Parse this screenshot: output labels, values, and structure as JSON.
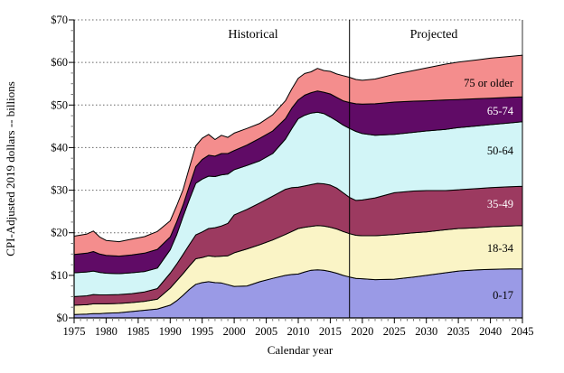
{
  "chart": {
    "header_left": "Historical",
    "header_right": "Projected",
    "x_axis_title": "Calendar year",
    "y_axis_title": "CPI-Adjusted 2019 dollars -- billions"
  },
  "chart_data": {
    "type": "area",
    "stacked": true,
    "title": "",
    "xlabel": "Calendar year",
    "ylabel": "CPI-Adjusted 2019 dollars -- billions",
    "xlim": [
      1975,
      2045
    ],
    "ylim": [
      0,
      70
    ],
    "grid": "horizontal dotted lines every $10",
    "legend_position": "labels inside bands at right",
    "divider_year": 2018,
    "annotations": [
      "Historical",
      "Projected"
    ],
    "y_tick_labels": [
      "$0",
      "$10",
      "$20",
      "$30",
      "$40",
      "$50",
      "$60",
      "$70"
    ],
    "y_tick_values": [
      0,
      10,
      20,
      30,
      40,
      50,
      60,
      70
    ],
    "x_tick_labels": [
      "1975",
      "1980",
      "1985",
      "1990",
      "1995",
      "2000",
      "2005",
      "2010",
      "2015",
      "2020",
      "2025",
      "2030",
      "2035",
      "2040",
      "2045"
    ],
    "x_tick_values": [
      1975,
      1980,
      1985,
      1990,
      1995,
      2000,
      2005,
      2010,
      2015,
      2020,
      2025,
      2030,
      2035,
      2040,
      2045
    ],
    "x": [
      1975,
      1977,
      1978,
      1979,
      1980,
      1982,
      1984,
      1986,
      1988,
      1990,
      1991,
      1992,
      1993,
      1994,
      1995,
      1996,
      1997,
      1998,
      1999,
      2000,
      2002,
      2004,
      2006,
      2008,
      2009,
      2010,
      2011,
      2012,
      2013,
      2014,
      2015,
      2016,
      2017,
      2018,
      2019,
      2020,
      2022,
      2025,
      2028,
      2030,
      2033,
      2035,
      2038,
      2040,
      2043,
      2045
    ],
    "series": [
      {
        "name": "0-17",
        "color": "#9a9ae6",
        "label_color": "#000000",
        "values": [
          0.8,
          0.9,
          1.0,
          1.0,
          1.1,
          1.2,
          1.5,
          1.8,
          2.1,
          3.0,
          4.0,
          5.3,
          6.7,
          7.9,
          8.3,
          8.5,
          8.3,
          8.2,
          7.8,
          7.4,
          7.5,
          8.5,
          9.3,
          10.0,
          10.2,
          10.3,
          10.8,
          11.2,
          11.3,
          11.2,
          10.9,
          10.5,
          10.0,
          9.6,
          9.3,
          9.2,
          9.0,
          9.1,
          9.6,
          10.0,
          10.6,
          11.0,
          11.3,
          11.4,
          11.5,
          11.5
        ]
      },
      {
        "name": "18-34",
        "color": "#faf4c6",
        "label_color": "#000000",
        "values": [
          2.2,
          2.2,
          2.3,
          2.3,
          2.2,
          2.2,
          2.1,
          2.1,
          2.3,
          4.0,
          4.7,
          5.1,
          5.5,
          6.0,
          5.9,
          6.1,
          6.1,
          6.3,
          6.8,
          7.9,
          8.7,
          8.7,
          9.0,
          9.6,
          10.1,
          10.7,
          10.5,
          10.3,
          10.4,
          10.4,
          10.4,
          10.4,
          10.3,
          10.2,
          10.1,
          10.1,
          10.3,
          10.5,
          10.4,
          10.2,
          10.1,
          10.0,
          9.9,
          10.0,
          10.1,
          10.2
        ]
      },
      {
        "name": "35-49",
        "color": "#9c3a60",
        "label_color": "#ffffff",
        "values": [
          2.0,
          2.1,
          2.2,
          2.1,
          2.1,
          2.1,
          2.1,
          2.2,
          2.5,
          3.5,
          3.9,
          4.5,
          5.0,
          5.6,
          6.0,
          6.4,
          6.8,
          7.1,
          7.6,
          8.9,
          9.3,
          9.8,
          10.3,
          10.6,
          10.3,
          9.7,
          9.7,
          9.8,
          9.9,
          9.9,
          9.9,
          9.6,
          9.1,
          8.5,
          8.2,
          8.4,
          8.9,
          9.8,
          9.8,
          9.7,
          9.2,
          9.1,
          9.2,
          9.2,
          9.2,
          9.2
        ]
      },
      {
        "name": "50-64",
        "color": "#d2f5f7",
        "label_color": "#000000",
        "values": [
          5.6,
          5.6,
          5.5,
          5.3,
          5.1,
          4.9,
          4.9,
          4.8,
          4.8,
          5.5,
          6.9,
          8.9,
          10.6,
          12.1,
          12.4,
          12.3,
          12.0,
          12.0,
          11.6,
          10.6,
          10.3,
          9.9,
          10.0,
          11.8,
          13.9,
          16.1,
          16.6,
          16.8,
          16.7,
          16.5,
          16.0,
          15.8,
          15.9,
          16.2,
          16.2,
          15.6,
          14.7,
          13.7,
          13.8,
          14.0,
          14.4,
          14.6,
          14.7,
          14.8,
          15.0,
          15.2
        ]
      },
      {
        "name": "65-74",
        "color": "#600b66",
        "label_color": "#ffffff",
        "values": [
          4.3,
          4.4,
          4.6,
          4.3,
          4.2,
          4.1,
          4.2,
          4.3,
          4.4,
          3.0,
          3.0,
          2.7,
          3.2,
          3.9,
          4.6,
          4.9,
          4.8,
          5.0,
          4.8,
          4.5,
          4.8,
          5.3,
          5.3,
          4.8,
          4.8,
          4.4,
          4.7,
          4.8,
          5.0,
          5.0,
          5.4,
          5.5,
          5.7,
          6.1,
          6.5,
          6.9,
          7.4,
          7.6,
          7.3,
          7.1,
          6.9,
          6.6,
          6.4,
          6.2,
          6.0,
          5.8
        ]
      },
      {
        "name": "75 or older",
        "color": "#f48d8d",
        "label_color": "#000000",
        "values": [
          4.3,
          4.5,
          4.8,
          4.0,
          3.5,
          3.4,
          3.7,
          3.9,
          4.2,
          3.8,
          3.8,
          3.6,
          4.3,
          4.9,
          5.0,
          4.9,
          3.9,
          4.3,
          3.8,
          4.1,
          3.9,
          3.5,
          3.8,
          4.2,
          4.5,
          5.1,
          5.1,
          4.9,
          5.3,
          5.1,
          5.3,
          5.5,
          5.9,
          5.9,
          5.7,
          5.6,
          5.8,
          6.5,
          7.2,
          7.7,
          8.4,
          8.8,
          9.1,
          9.4,
          9.6,
          9.8
        ]
      }
    ],
    "colors": {
      "outline": "#000000",
      "gridline": "#666666",
      "divider": "#000000",
      "axis": "#000000"
    }
  }
}
